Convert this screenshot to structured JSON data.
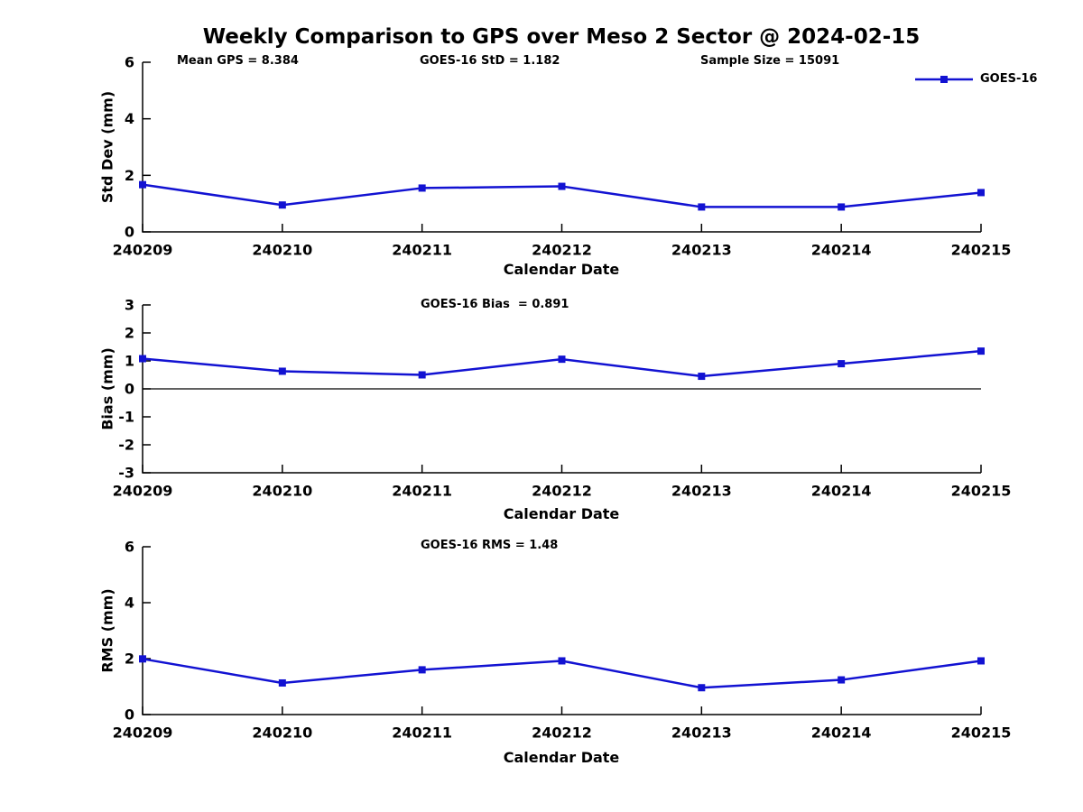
{
  "title": "Weekly Comparison to GPS over Meso 2 Sector @ 2024-02-15",
  "annotations": {
    "mean_gps": "Mean GPS = 8.384",
    "goes16_std": "GOES-16 StD = 1.182",
    "sample_size": "Sample Size = 15091",
    "goes16_bias": "GOES-16 Bias  = 0.891",
    "goes16_rms": "GOES-16 RMS = 1.48"
  },
  "legend": {
    "label": "GOES-16",
    "color": "#1212d2"
  },
  "chart_data": [
    {
      "type": "line",
      "panel": "std-dev",
      "ylabel": "Std Dev (mm)",
      "xlabel": "Calendar Date",
      "categories": [
        "240209",
        "240210",
        "240211",
        "240212",
        "240213",
        "240214",
        "240215"
      ],
      "series": [
        {
          "name": "GOES-16",
          "values": [
            1.67,
            0.95,
            1.55,
            1.61,
            0.88,
            0.88,
            1.39
          ]
        }
      ],
      "ylim": [
        0,
        6
      ],
      "yticks": [
        0,
        2,
        4,
        6
      ],
      "zero_line": false,
      "grid": false,
      "legend_position": "upper-right"
    },
    {
      "type": "line",
      "panel": "bias",
      "ylabel": "Bias (mm)",
      "xlabel": "Calendar Date",
      "categories": [
        "240209",
        "240210",
        "240211",
        "240212",
        "240213",
        "240214",
        "240215"
      ],
      "series": [
        {
          "name": "GOES-16",
          "values": [
            1.08,
            0.63,
            0.5,
            1.06,
            0.45,
            0.9,
            1.35
          ]
        }
      ],
      "ylim": [
        -3,
        3
      ],
      "yticks": [
        3,
        2,
        1,
        0,
        -1,
        -2,
        -3
      ],
      "zero_line": true,
      "grid": false,
      "legend_position": "none"
    },
    {
      "type": "line",
      "panel": "rms",
      "ylabel": "RMS (mm)",
      "xlabel": "Calendar Date",
      "categories": [
        "240209",
        "240210",
        "240211",
        "240212",
        "240213",
        "240214",
        "240215"
      ],
      "series": [
        {
          "name": "GOES-16",
          "values": [
            1.99,
            1.13,
            1.6,
            1.92,
            0.96,
            1.24,
            1.92
          ]
        }
      ],
      "ylim": [
        0,
        6
      ],
      "yticks": [
        0,
        2,
        4,
        6
      ],
      "zero_line": false,
      "grid": false,
      "legend_position": "none"
    }
  ]
}
